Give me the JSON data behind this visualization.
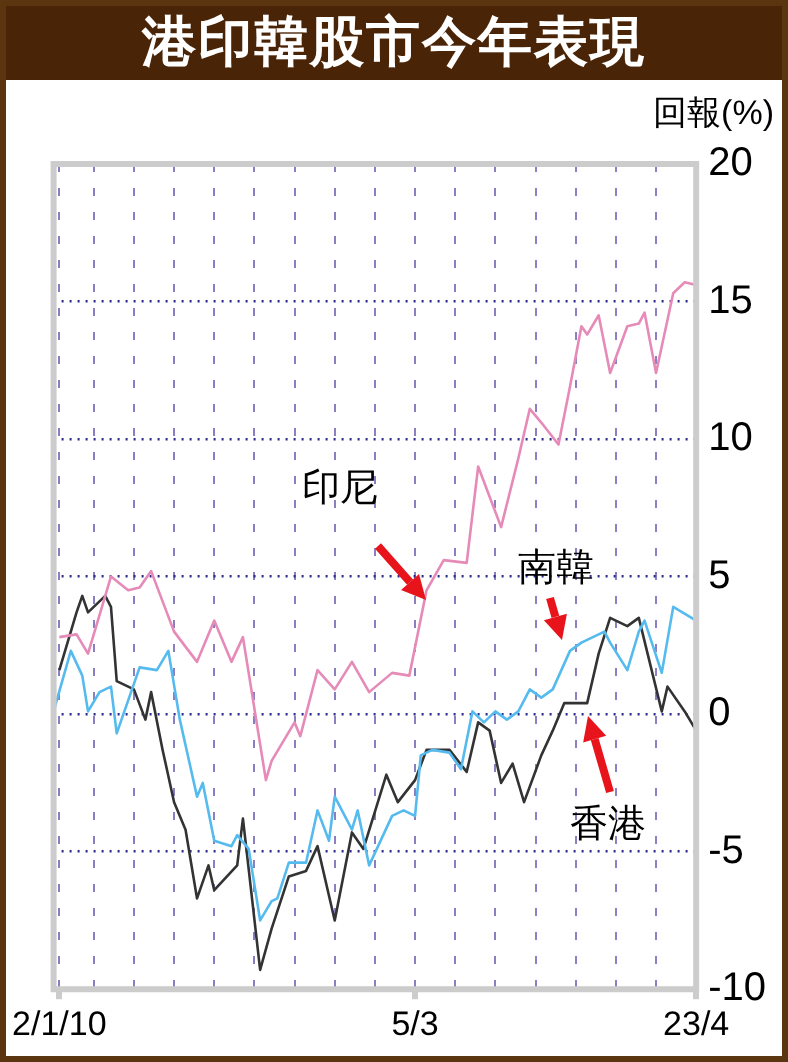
{
  "chart_data": {
    "type": "line",
    "title": "港印韓股市今年表現",
    "ylabel": "回報(%)",
    "xlim": [
      "--01-01",
      "--04-23"
    ],
    "xticks": [
      {
        "value": "--01-02",
        "label": "2/1/10"
      },
      {
        "value": "--01-08",
        "label": null
      },
      {
        "value": "--01-15",
        "label": null
      },
      {
        "value": "--01-22",
        "label": null
      },
      {
        "value": "--01-29",
        "label": null
      },
      {
        "value": "--02-05",
        "label": null
      },
      {
        "value": "--02-12",
        "label": null
      },
      {
        "value": "--02-19",
        "label": null
      },
      {
        "value": "--02-26",
        "label": null
      },
      {
        "value": "--03-05",
        "label": "5/3"
      },
      {
        "value": "--03-12",
        "label": null
      },
      {
        "value": "--03-19",
        "label": null
      },
      {
        "value": "--03-26",
        "label": null
      },
      {
        "value": "--04-02",
        "label": null
      },
      {
        "value": "--04-09",
        "label": null
      },
      {
        "value": "--04-16",
        "label": null
      },
      {
        "value": "--04-23",
        "label": "23/4"
      }
    ],
    "ylim": [
      -10,
      20
    ],
    "yticks": [
      -10,
      -5,
      0,
      5,
      10,
      15,
      20
    ],
    "grid": true,
    "legend": false,
    "series": [
      {
        "name": "印尼",
        "color": "#e68ab8",
        "x": [
          "--01-02",
          "--01-05",
          "--01-07",
          "--01-11",
          "--01-14",
          "--01-16",
          "--01-18",
          "--01-22",
          "--01-26",
          "--01-29",
          "--02-01",
          "--02-03",
          "--02-07",
          "--02-08",
          "--02-12",
          "--02-13",
          "--02-16",
          "--02-19",
          "--02-22",
          "--02-25",
          "--03-01",
          "--03-04",
          "--03-07",
          "--03-10",
          "--03-14",
          "--03-16",
          "--03-20",
          "--03-23",
          "--03-25",
          "--03-27",
          "--03-30",
          "--04-01",
          "--04-03",
          "--04-04",
          "--04-06",
          "--04-08",
          "--04-11",
          "--04-13",
          "--04-14",
          "--04-16",
          "--04-19",
          "--04-21",
          "--04-23"
        ],
        "values": [
          2.8,
          2.9,
          2.2,
          5.0,
          4.5,
          4.6,
          5.2,
          3.0,
          1.9,
          3.4,
          1.9,
          2.8,
          -2.4,
          -1.7,
          -0.3,
          -0.8,
          1.6,
          0.9,
          1.9,
          0.8,
          1.5,
          1.4,
          4.5,
          5.6,
          5.5,
          9.0,
          6.8,
          9.3,
          11.1,
          10.6,
          9.8,
          11.9,
          14.1,
          13.8,
          14.5,
          12.4,
          14.1,
          14.2,
          14.6,
          12.4,
          15.3,
          15.7,
          15.6
        ]
      },
      {
        "name": "南韓",
        "color": "#55bbee",
        "x": [
          "--01-01",
          "--01-04",
          "--01-06",
          "--01-07",
          "--01-09",
          "--01-11",
          "--01-12",
          "--01-16",
          "--01-19",
          "--01-21",
          "--01-23",
          "--01-26",
          "--01-27",
          "--01-29",
          "--02-01",
          "--02-02",
          "--02-04",
          "--02-06",
          "--02-08",
          "--02-09",
          "--02-11",
          "--02-14",
          "--02-16",
          "--02-18",
          "--02-19",
          "--02-22",
          "--02-23",
          "--02-25",
          "--03-01",
          "--03-03",
          "--03-05",
          "--03-06",
          "--03-08",
          "--03-11",
          "--03-13",
          "--03-15",
          "--03-17",
          "--03-19",
          "--03-21",
          "--03-23",
          "--03-25",
          "--03-27",
          "--03-29",
          "--04-01",
          "--04-03",
          "--04-07",
          "--04-08",
          "--04-11",
          "--04-13",
          "--04-14",
          "--04-17",
          "--04-19",
          "--04-23"
        ],
        "values": [
          0.1,
          2.3,
          1.4,
          0.1,
          0.8,
          1.0,
          -0.7,
          1.7,
          1.6,
          2.3,
          -0.2,
          -3.0,
          -2.5,
          -4.6,
          -4.8,
          -4.4,
          -4.9,
          -7.5,
          -6.8,
          -6.7,
          -5.4,
          -5.4,
          -3.5,
          -4.6,
          -3.0,
          -4.2,
          -3.5,
          -5.5,
          -3.7,
          -3.5,
          -3.7,
          -1.5,
          -1.3,
          -1.4,
          -2.0,
          0.1,
          -0.3,
          0.1,
          -0.2,
          0.1,
          0.9,
          0.6,
          0.9,
          2.3,
          2.6,
          3.0,
          2.6,
          1.6,
          3.0,
          3.4,
          1.5,
          3.9,
          3.4
        ]
      },
      {
        "name": "香港",
        "color": "#333333",
        "x": [
          "--01-02",
          "--01-05",
          "--01-06",
          "--01-07",
          "--01-10",
          "--01-11",
          "--01-12",
          "--01-15",
          "--01-17",
          "--01-18",
          "--01-20",
          "--01-22",
          "--01-24",
          "--01-26",
          "--01-28",
          "--01-29",
          "--02-02",
          "--02-03",
          "--02-06",
          "--02-08",
          "--02-11",
          "--02-14",
          "--02-16",
          "--02-19",
          "--02-22",
          "--02-24",
          "--02-28",
          "--03-02",
          "--03-05",
          "--03-07",
          "--03-11",
          "--03-14",
          "--03-16",
          "--03-18",
          "--03-20",
          "--03-22",
          "--03-24",
          "--03-27",
          "--03-29",
          "--03-31",
          "--04-04",
          "--04-06",
          "--04-08",
          "--04-11",
          "--04-13",
          "--04-17",
          "--04-18",
          "--04-21",
          "--04-23"
        ],
        "values": [
          1.6,
          3.7,
          4.3,
          3.7,
          4.3,
          3.9,
          1.2,
          0.9,
          -0.2,
          0.8,
          -1.3,
          -3.2,
          -4.2,
          -6.7,
          -5.5,
          -6.4,
          -5.5,
          -3.8,
          -9.3,
          -7.8,
          -5.9,
          -5.7,
          -4.8,
          -7.5,
          -4.3,
          -4.9,
          -2.2,
          -3.2,
          -2.4,
          -1.3,
          -1.3,
          -2.1,
          -0.3,
          -0.6,
          -2.5,
          -1.8,
          -3.2,
          -1.5,
          -0.6,
          0.4,
          0.4,
          2.2,
          3.5,
          3.2,
          3.5,
          0.1,
          1.0,
          0.1,
          -0.6
        ]
      }
    ]
  }
}
